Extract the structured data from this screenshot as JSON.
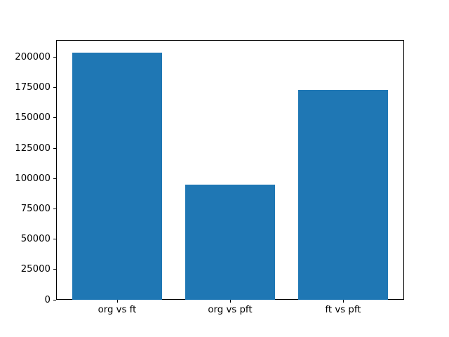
{
  "figure": {
    "background": "#ffffff",
    "text_color": "#000000",
    "frame_color": "#000000"
  },
  "chart_data": {
    "type": "bar",
    "title": "",
    "xlabel": "",
    "ylabel": "",
    "categories": [
      "org vs ft",
      "org vs pft",
      "ft vs pft"
    ],
    "values": [
      204000,
      95000,
      173000
    ],
    "bar_color": "#1f77b4",
    "bar_width_fraction": 0.8,
    "ylim": [
      0,
      214200
    ],
    "yticks": [
      0,
      25000,
      50000,
      75000,
      100000,
      125000,
      150000,
      175000,
      200000
    ],
    "ytick_labels": [
      "0",
      "25000",
      "50000",
      "75000",
      "100000",
      "125000",
      "150000",
      "175000",
      "200000"
    ],
    "grid": false,
    "legend_position": "none"
  }
}
